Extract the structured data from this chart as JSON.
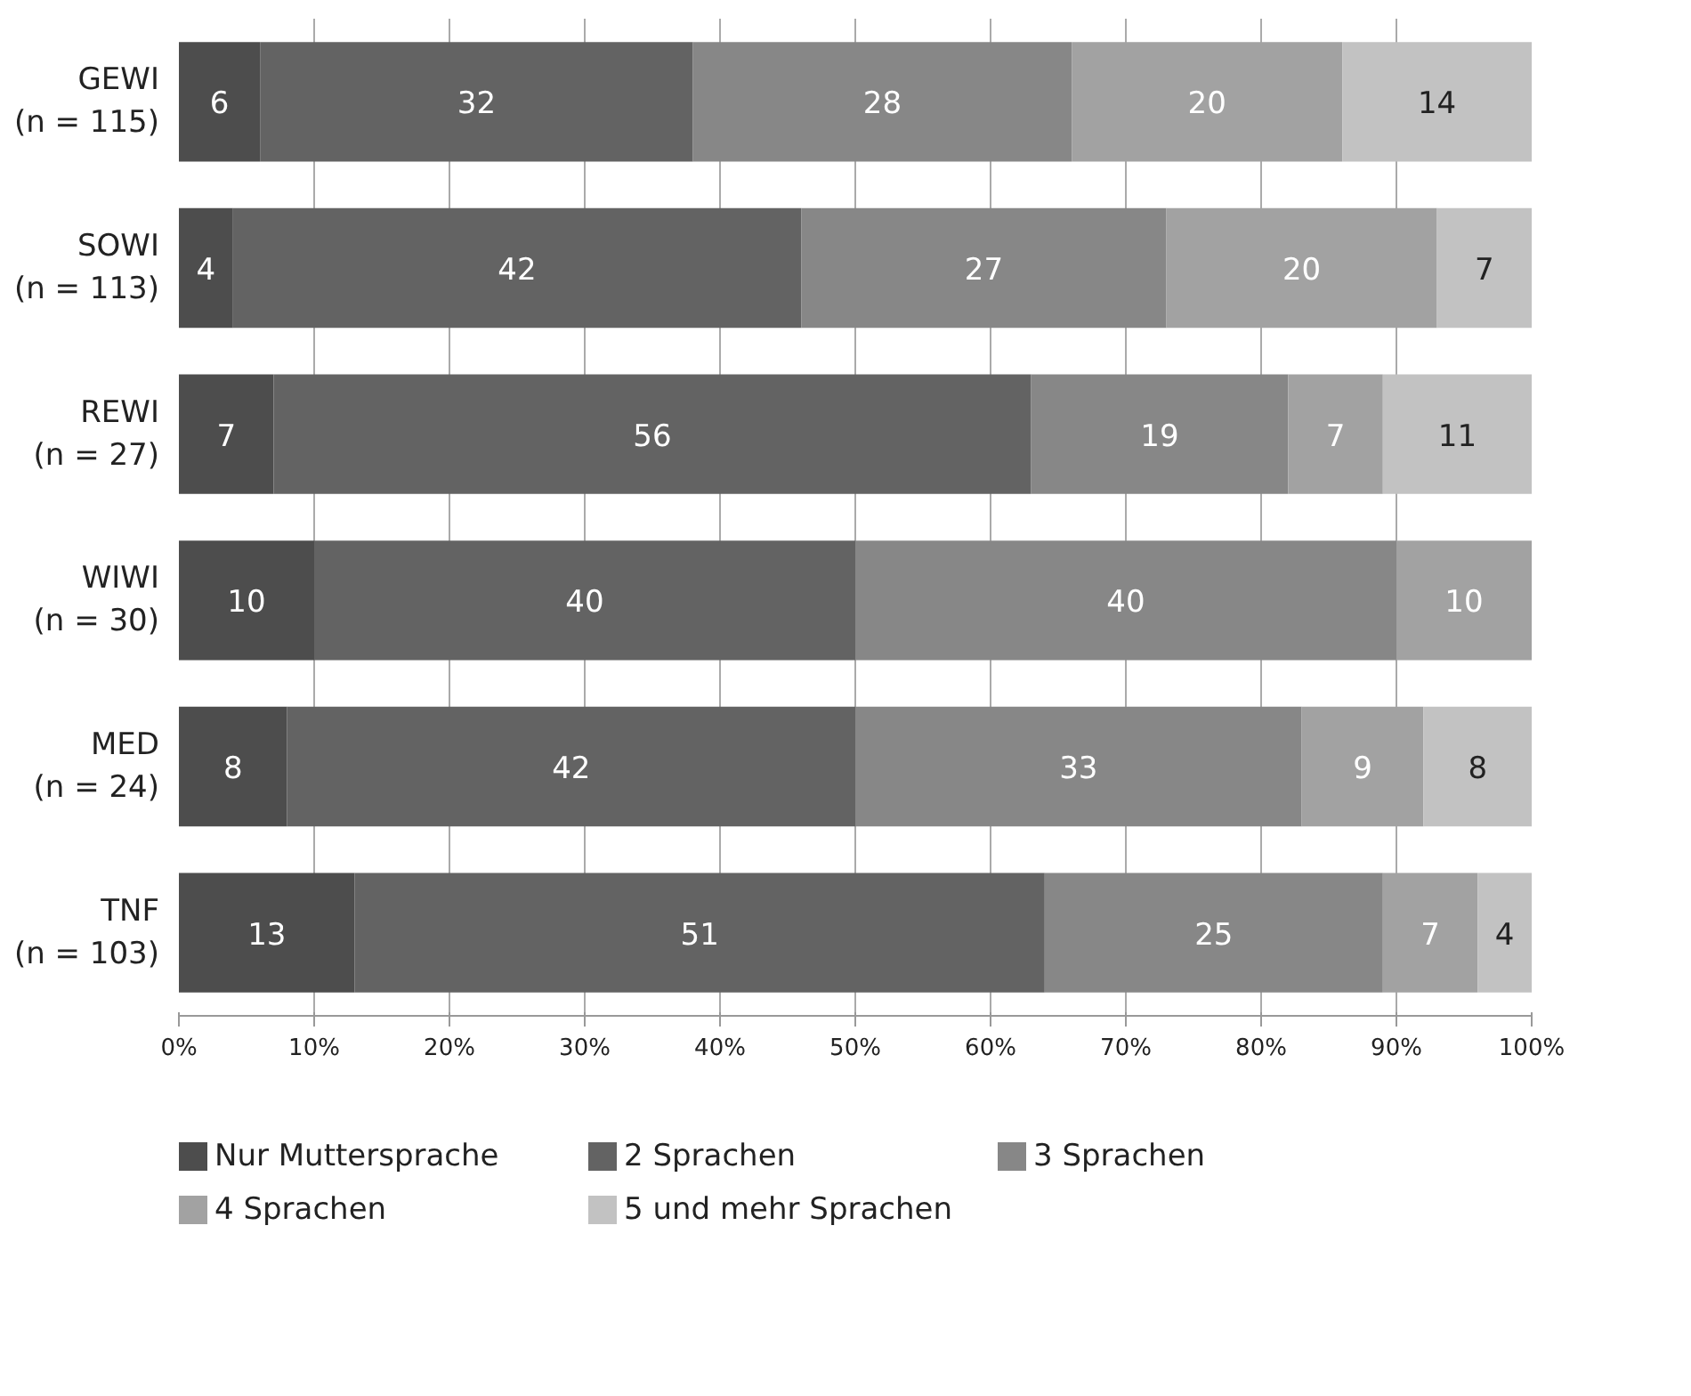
{
  "chart_data": {
    "type": "bar",
    "orientation": "horizontal",
    "stacked": true,
    "data_labels": true,
    "categories": [
      "GEWI\n(n = 115)",
      "SOWI\n(n = 113)",
      "REWI\n(n = 27)",
      "WIWI\n(n = 30)",
      "MED\n(n = 24)",
      "TNF\n(n = 103)"
    ],
    "series": [
      {
        "name": "Nur Muttersprache",
        "color": "#4d4d4d",
        "values": [
          6,
          4,
          7,
          10,
          8,
          13
        ]
      },
      {
        "name": "2 Sprachen",
        "color": "#636363",
        "values": [
          32,
          42,
          56,
          40,
          42,
          51
        ]
      },
      {
        "name": "3 Sprachen",
        "color": "#878787",
        "values": [
          28,
          27,
          19,
          40,
          33,
          25
        ]
      },
      {
        "name": "4 Sprachen",
        "color": "#a2a2a2",
        "values": [
          20,
          20,
          7,
          10,
          9,
          7
        ]
      },
      {
        "name": "5 und mehr Sprachen",
        "color": "#c2c2c2",
        "values": [
          14,
          7,
          11,
          null,
          8,
          4
        ]
      }
    ],
    "xlim": [
      0,
      100
    ],
    "xticks": [
      {
        "value": 0,
        "label": "0%"
      },
      {
        "value": 10,
        "label": "10%"
      },
      {
        "value": 20,
        "label": "20%"
      },
      {
        "value": 30,
        "label": "30%"
      },
      {
        "value": 40,
        "label": "40%"
      },
      {
        "value": 50,
        "label": "50%"
      },
      {
        "value": 60,
        "label": "60%"
      },
      {
        "value": 70,
        "label": "70%"
      },
      {
        "value": 80,
        "label": "80%"
      },
      {
        "value": 90,
        "label": "90%"
      },
      {
        "value": 100,
        "label": "100%"
      }
    ],
    "grid": "x",
    "legend": "bottom"
  }
}
